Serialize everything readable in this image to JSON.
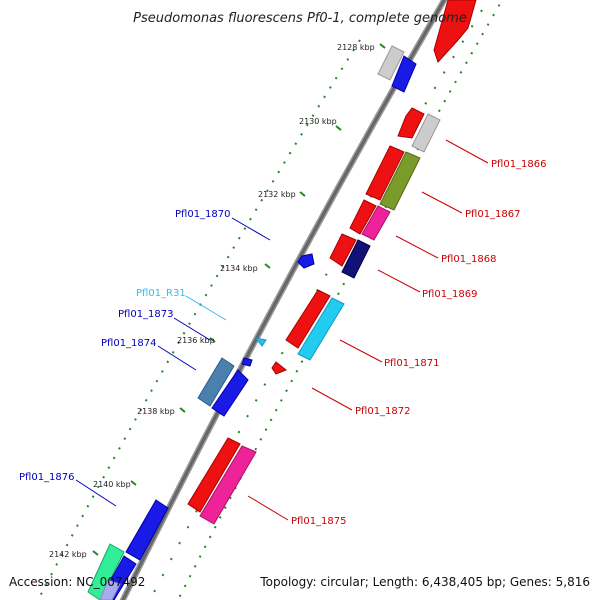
{
  "title": "Pseudomonas fluorescens Pf0-1, complete genome",
  "footer": {
    "accession": "Accession: NC_007492",
    "topology": "Topology: circular; Length: 6,438,405 bp; Genes: 5,816"
  },
  "ticks": [
    "2128 kbp",
    "2130 kbp",
    "2132 kbp",
    "2134 kbp",
    "2136 kbp",
    "2138 kbp",
    "2140 kbp",
    "2142 kbp"
  ],
  "gene_labels": [
    {
      "text": "Pfl01_1866",
      "color": "#cc0000",
      "side": "right"
    },
    {
      "text": "Pfl01_1867",
      "color": "#cc0000",
      "side": "right"
    },
    {
      "text": "Pfl01_1868",
      "color": "#cc0000",
      "side": "right"
    },
    {
      "text": "Pfl01_1869",
      "color": "#cc0000",
      "side": "right"
    },
    {
      "text": "Pfl01_1871",
      "color": "#cc0000",
      "side": "right"
    },
    {
      "text": "Pfl01_1872",
      "color": "#cc0000",
      "side": "right"
    },
    {
      "text": "Pfl01_1875",
      "color": "#cc0000",
      "side": "right"
    },
    {
      "text": "Pfl01_1870",
      "color": "#0000bb",
      "side": "left"
    },
    {
      "text": "Pfl01_R31",
      "color": "#33bbee",
      "side": "left"
    },
    {
      "text": "Pfl01_1873",
      "color": "#0000bb",
      "side": "left"
    },
    {
      "text": "Pfl01_1874",
      "color": "#0000bb",
      "side": "left"
    },
    {
      "text": "Pfl01_1876",
      "color": "#0000bb",
      "side": "left"
    }
  ],
  "colors": {
    "backbone": "#777777",
    "forward_strand": "#ee1111",
    "reverse_strand": "#1a1ae6",
    "ticks": "#228822",
    "pseudo": "#c8c8c8",
    "olive": "#7a9a2a",
    "magenta": "#ee2299",
    "navy": "#111177",
    "cyan": "#22ccf0",
    "steel": "#4a7fae",
    "mint": "#33ee99",
    "lavender": "#aaaaee"
  }
}
